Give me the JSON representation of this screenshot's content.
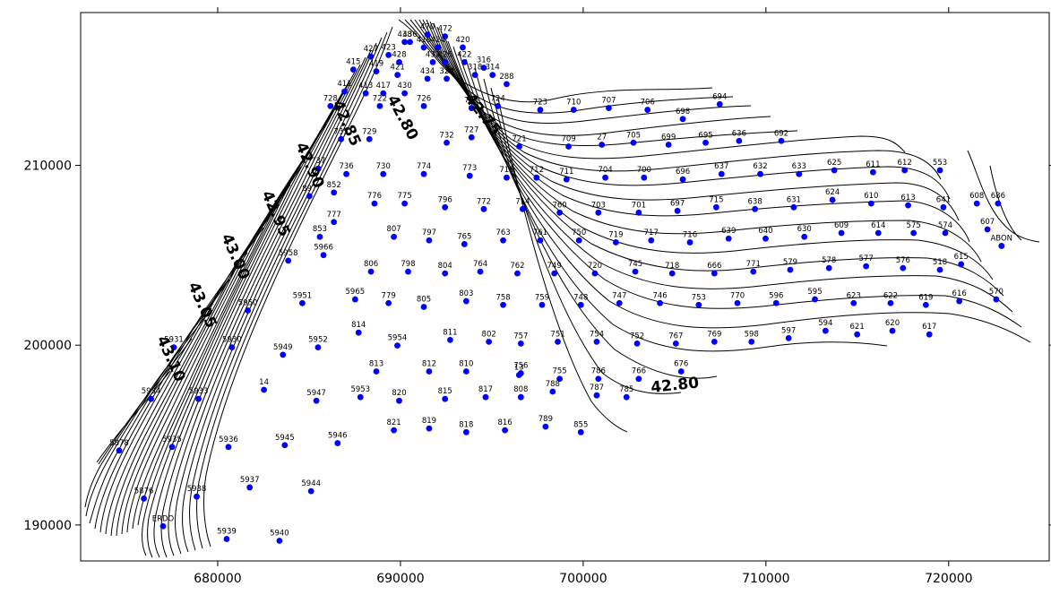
{
  "chart_data": {
    "type": "scatter",
    "title": "",
    "xlabel": "",
    "ylabel": "",
    "xlim": [
      672500,
      725500
    ],
    "ylim": [
      188000,
      218500
    ],
    "grid": false,
    "x_ticks": [
      {
        "v": 680000,
        "label": "680000"
      },
      {
        "v": 690000,
        "label": "690000"
      },
      {
        "v": 700000,
        "label": "700000"
      },
      {
        "v": 710000,
        "label": "710000"
      },
      {
        "v": 720000,
        "label": "720000"
      }
    ],
    "y_ticks": [
      {
        "v": 190000,
        "label": "190000"
      },
      {
        "v": 200000,
        "label": "200000"
      },
      {
        "v": 210000,
        "label": "210000"
      }
    ],
    "points": [
      [
        "470",
        691.48,
        217.27
      ],
      [
        "472",
        692.44,
        217.17
      ],
      [
        "436",
        690.52,
        216.86
      ],
      [
        "438",
        690.23,
        216.86
      ],
      [
        "416",
        691.28,
        216.56
      ],
      [
        "424",
        692.05,
        216.56
      ],
      [
        "420",
        693.41,
        216.56
      ],
      [
        "427",
        688.38,
        216.05
      ],
      [
        "423",
        689.35,
        216.14
      ],
      [
        "428",
        689.93,
        215.74
      ],
      [
        "432",
        691.77,
        215.74
      ],
      [
        "426",
        692.44,
        215.74
      ],
      [
        "422",
        693.5,
        215.74
      ],
      [
        "316",
        694.56,
        215.43
      ],
      [
        "415",
        687.42,
        215.33
      ],
      [
        "419",
        688.68,
        215.23
      ],
      [
        "421",
        689.84,
        215.03
      ],
      [
        "434",
        691.48,
        214.82
      ],
      [
        "320",
        692.53,
        214.82
      ],
      [
        "318",
        694.08,
        215.03
      ],
      [
        "314",
        695.04,
        215.03
      ],
      [
        "288",
        695.81,
        214.52
      ],
      [
        "411",
        686.94,
        214.11
      ],
      [
        "413",
        688.1,
        214.01
      ],
      [
        "417",
        689.06,
        214.01
      ],
      [
        "430",
        690.23,
        214.01
      ],
      [
        "724",
        695.33,
        213.3
      ],
      [
        "726",
        691.28,
        213.3
      ],
      [
        "728",
        686.17,
        213.3
      ],
      [
        "722",
        688.87,
        213.3
      ],
      [
        "725",
        693.89,
        213.19
      ],
      [
        "723",
        697.65,
        213.09
      ],
      [
        "710",
        699.48,
        213.09
      ],
      [
        "707",
        701.4,
        213.19
      ],
      [
        "706",
        703.52,
        213.09
      ],
      [
        "698",
        705.45,
        212.58
      ],
      [
        "694",
        707.47,
        213.4
      ],
      [
        "735",
        686.75,
        211.46
      ],
      [
        "729",
        688.3,
        211.46
      ],
      [
        "732",
        692.53,
        211.26
      ],
      [
        "721",
        696.5,
        211.05
      ],
      [
        "709",
        699.2,
        211.05
      ],
      [
        "727",
        693.89,
        211.56
      ],
      [
        "27",
        701.02,
        211.15
      ],
      [
        "705",
        702.75,
        211.26
      ],
      [
        "699",
        704.67,
        211.15
      ],
      [
        "695",
        706.7,
        211.26
      ],
      [
        "636",
        708.53,
        211.36
      ],
      [
        "692",
        710.84,
        211.36
      ],
      [
        "737",
        685.5,
        209.82
      ],
      [
        "736",
        687.04,
        209.52
      ],
      [
        "730",
        689.06,
        209.52
      ],
      [
        "774",
        691.28,
        209.52
      ],
      [
        "773",
        693.79,
        209.42
      ],
      [
        "713",
        695.81,
        209.32
      ],
      [
        "712",
        697.45,
        209.32
      ],
      [
        "711",
        699.09,
        209.22
      ],
      [
        "704",
        701.21,
        209.32
      ],
      [
        "700",
        703.33,
        209.32
      ],
      [
        "696",
        705.45,
        209.22
      ],
      [
        "637",
        707.57,
        209.52
      ],
      [
        "632",
        709.69,
        209.52
      ],
      [
        "633",
        711.81,
        209.52
      ],
      [
        "625",
        713.74,
        209.73
      ],
      [
        "611",
        715.86,
        209.62
      ],
      [
        "612",
        717.59,
        209.73
      ],
      [
        "553",
        719.52,
        209.73
      ],
      [
        "686",
        722.7,
        207.88
      ],
      [
        "852",
        686.36,
        208.49
      ],
      [
        "897",
        685.02,
        208.29
      ],
      [
        "776",
        688.58,
        207.88
      ],
      [
        "775",
        690.23,
        207.88
      ],
      [
        "796",
        692.44,
        207.67
      ],
      [
        "772",
        694.56,
        207.57
      ],
      [
        "714",
        696.69,
        207.57
      ],
      [
        "760",
        698.71,
        207.37
      ],
      [
        "703",
        700.83,
        207.37
      ],
      [
        "701",
        703.04,
        207.37
      ],
      [
        "697",
        705.16,
        207.47
      ],
      [
        "715",
        707.28,
        207.67
      ],
      [
        "638",
        709.4,
        207.57
      ],
      [
        "631",
        711.52,
        207.67
      ],
      [
        "624",
        713.64,
        208.08
      ],
      [
        "610",
        715.76,
        207.88
      ],
      [
        "613",
        717.78,
        207.78
      ],
      [
        "641",
        719.71,
        207.67
      ],
      [
        "608",
        721.54,
        207.88
      ],
      [
        "607",
        722.12,
        206.44
      ],
      [
        "777",
        686.36,
        206.85
      ],
      [
        "853",
        685.59,
        206.03
      ],
      [
        "807",
        689.64,
        206.03
      ],
      [
        "797",
        691.57,
        205.83
      ],
      [
        "765",
        693.5,
        205.62
      ],
      [
        "763",
        695.62,
        205.83
      ],
      [
        "761",
        697.65,
        205.83
      ],
      [
        "750",
        699.77,
        205.83
      ],
      [
        "719",
        701.79,
        205.72
      ],
      [
        "717",
        703.72,
        205.83
      ],
      [
        "716",
        705.84,
        205.72
      ],
      [
        "639",
        707.96,
        205.93
      ],
      [
        "640",
        709.98,
        205.93
      ],
      [
        "630",
        712.1,
        206.03
      ],
      [
        "609",
        714.13,
        206.24
      ],
      [
        "614",
        716.15,
        206.24
      ],
      [
        "575",
        718.08,
        206.24
      ],
      [
        "574",
        719.81,
        206.24
      ],
      [
        "ABON",
        722.89,
        205.52
      ],
      [
        "5958",
        683.86,
        204.7
      ],
      [
        "5966",
        685.79,
        205.01
      ],
      [
        "806",
        688.39,
        204.09
      ],
      [
        "798",
        690.42,
        204.09
      ],
      [
        "804",
        692.44,
        203.99
      ],
      [
        "764",
        694.37,
        204.09
      ],
      [
        "762",
        696.4,
        203.99
      ],
      [
        "749",
        698.42,
        203.99
      ],
      [
        "720",
        700.64,
        203.99
      ],
      [
        "745",
        702.85,
        204.09
      ],
      [
        "718",
        704.87,
        203.99
      ],
      [
        "666",
        707.18,
        203.99
      ],
      [
        "771",
        709.31,
        204.09
      ],
      [
        "579",
        711.33,
        204.19
      ],
      [
        "578",
        713.45,
        204.29
      ],
      [
        "577",
        715.48,
        204.39
      ],
      [
        "576",
        717.5,
        204.29
      ],
      [
        "518",
        719.52,
        204.19
      ],
      [
        "615",
        720.68,
        204.5
      ],
      [
        "5950",
        681.65,
        201.93
      ],
      [
        "5951",
        684.63,
        202.34
      ],
      [
        "5965",
        687.52,
        202.55
      ],
      [
        "779",
        689.35,
        202.34
      ],
      [
        "805",
        691.28,
        202.13
      ],
      [
        "803",
        693.6,
        202.45
      ],
      [
        "758",
        695.62,
        202.24
      ],
      [
        "759",
        697.75,
        202.24
      ],
      [
        "748",
        699.87,
        202.24
      ],
      [
        "747",
        701.98,
        202.34
      ],
      [
        "746",
        704.2,
        202.34
      ],
      [
        "753",
        706.32,
        202.24
      ],
      [
        "770",
        708.44,
        202.34
      ],
      [
        "596",
        710.56,
        202.34
      ],
      [
        "595",
        712.68,
        202.55
      ],
      [
        "623",
        714.8,
        202.34
      ],
      [
        "622",
        716.82,
        202.34
      ],
      [
        "619",
        718.75,
        202.24
      ],
      [
        "616",
        720.58,
        202.45
      ],
      [
        "570",
        722.6,
        202.55
      ],
      [
        "5930",
        680.78,
        199.88
      ],
      [
        "5949",
        683.57,
        199.47
      ],
      [
        "5952",
        685.49,
        199.88
      ],
      [
        "814",
        687.71,
        200.7
      ],
      [
        "5954",
        689.83,
        199.98
      ],
      [
        "811",
        692.72,
        200.29
      ],
      [
        "802",
        694.84,
        200.19
      ],
      [
        "757",
        696.59,
        200.09
      ],
      [
        "751",
        698.61,
        200.19
      ],
      [
        "754",
        700.74,
        200.19
      ],
      [
        "752",
        702.95,
        200.09
      ],
      [
        "767",
        705.07,
        200.09
      ],
      [
        "769",
        707.18,
        200.19
      ],
      [
        "598",
        709.21,
        200.19
      ],
      [
        "597",
        711.24,
        200.39
      ],
      [
        "594",
        713.26,
        200.8
      ],
      [
        "621",
        714.99,
        200.6
      ],
      [
        "620",
        716.92,
        200.8
      ],
      [
        "617",
        718.94,
        200.6
      ],
      [
        "5931",
        677.6,
        199.88
      ],
      [
        "813",
        688.68,
        198.54
      ],
      [
        "812",
        691.57,
        198.54
      ],
      [
        "810",
        693.6,
        198.54
      ],
      [
        "13",
        696.49,
        198.34
      ],
      [
        "756",
        696.59,
        198.44
      ],
      [
        "755",
        698.71,
        198.13
      ],
      [
        "786",
        700.83,
        198.13
      ],
      [
        "766",
        703.04,
        198.13
      ],
      [
        "676",
        705.36,
        198.54
      ],
      [
        "5934",
        676.35,
        197.01
      ],
      [
        "5933",
        678.95,
        197.01
      ],
      [
        "14",
        682.53,
        197.52
      ],
      [
        "5947",
        685.4,
        196.91
      ],
      [
        "5953",
        687.81,
        197.11
      ],
      [
        "820",
        689.93,
        196.91
      ],
      [
        "815",
        692.44,
        197.01
      ],
      [
        "817",
        694.66,
        197.11
      ],
      [
        "808",
        696.59,
        197.11
      ],
      [
        "788",
        698.33,
        197.42
      ],
      [
        "787",
        700.74,
        197.21
      ],
      [
        "785",
        702.37,
        197.11
      ],
      [
        "5936",
        680.59,
        194.34
      ],
      [
        "5945",
        683.67,
        194.44
      ],
      [
        "5946",
        686.56,
        194.55
      ],
      [
        "821",
        689.64,
        195.27
      ],
      [
        "819",
        691.57,
        195.37
      ],
      [
        "818",
        693.6,
        195.16
      ],
      [
        "816",
        695.72,
        195.27
      ],
      [
        "789",
        697.94,
        195.47
      ],
      [
        "855",
        699.87,
        195.16
      ],
      [
        "5878",
        674.61,
        194.14
      ],
      [
        "5935",
        677.5,
        194.34
      ],
      [
        "5937",
        681.75,
        192.09
      ],
      [
        "5944",
        685.11,
        191.88
      ],
      [
        "5876",
        675.96,
        191.47
      ],
      [
        "5938",
        678.85,
        191.58
      ],
      [
        "ERDO",
        677.01,
        189.93
      ],
      [
        "5939",
        680.49,
        189.22
      ],
      [
        "5940",
        683.38,
        189.12
      ]
    ],
    "contour_levels": [
      "42.75",
      "42.80",
      "42.80",
      "42.85",
      "42.90",
      "42.95",
      "43.00",
      "43.05",
      "43.10"
    ]
  }
}
